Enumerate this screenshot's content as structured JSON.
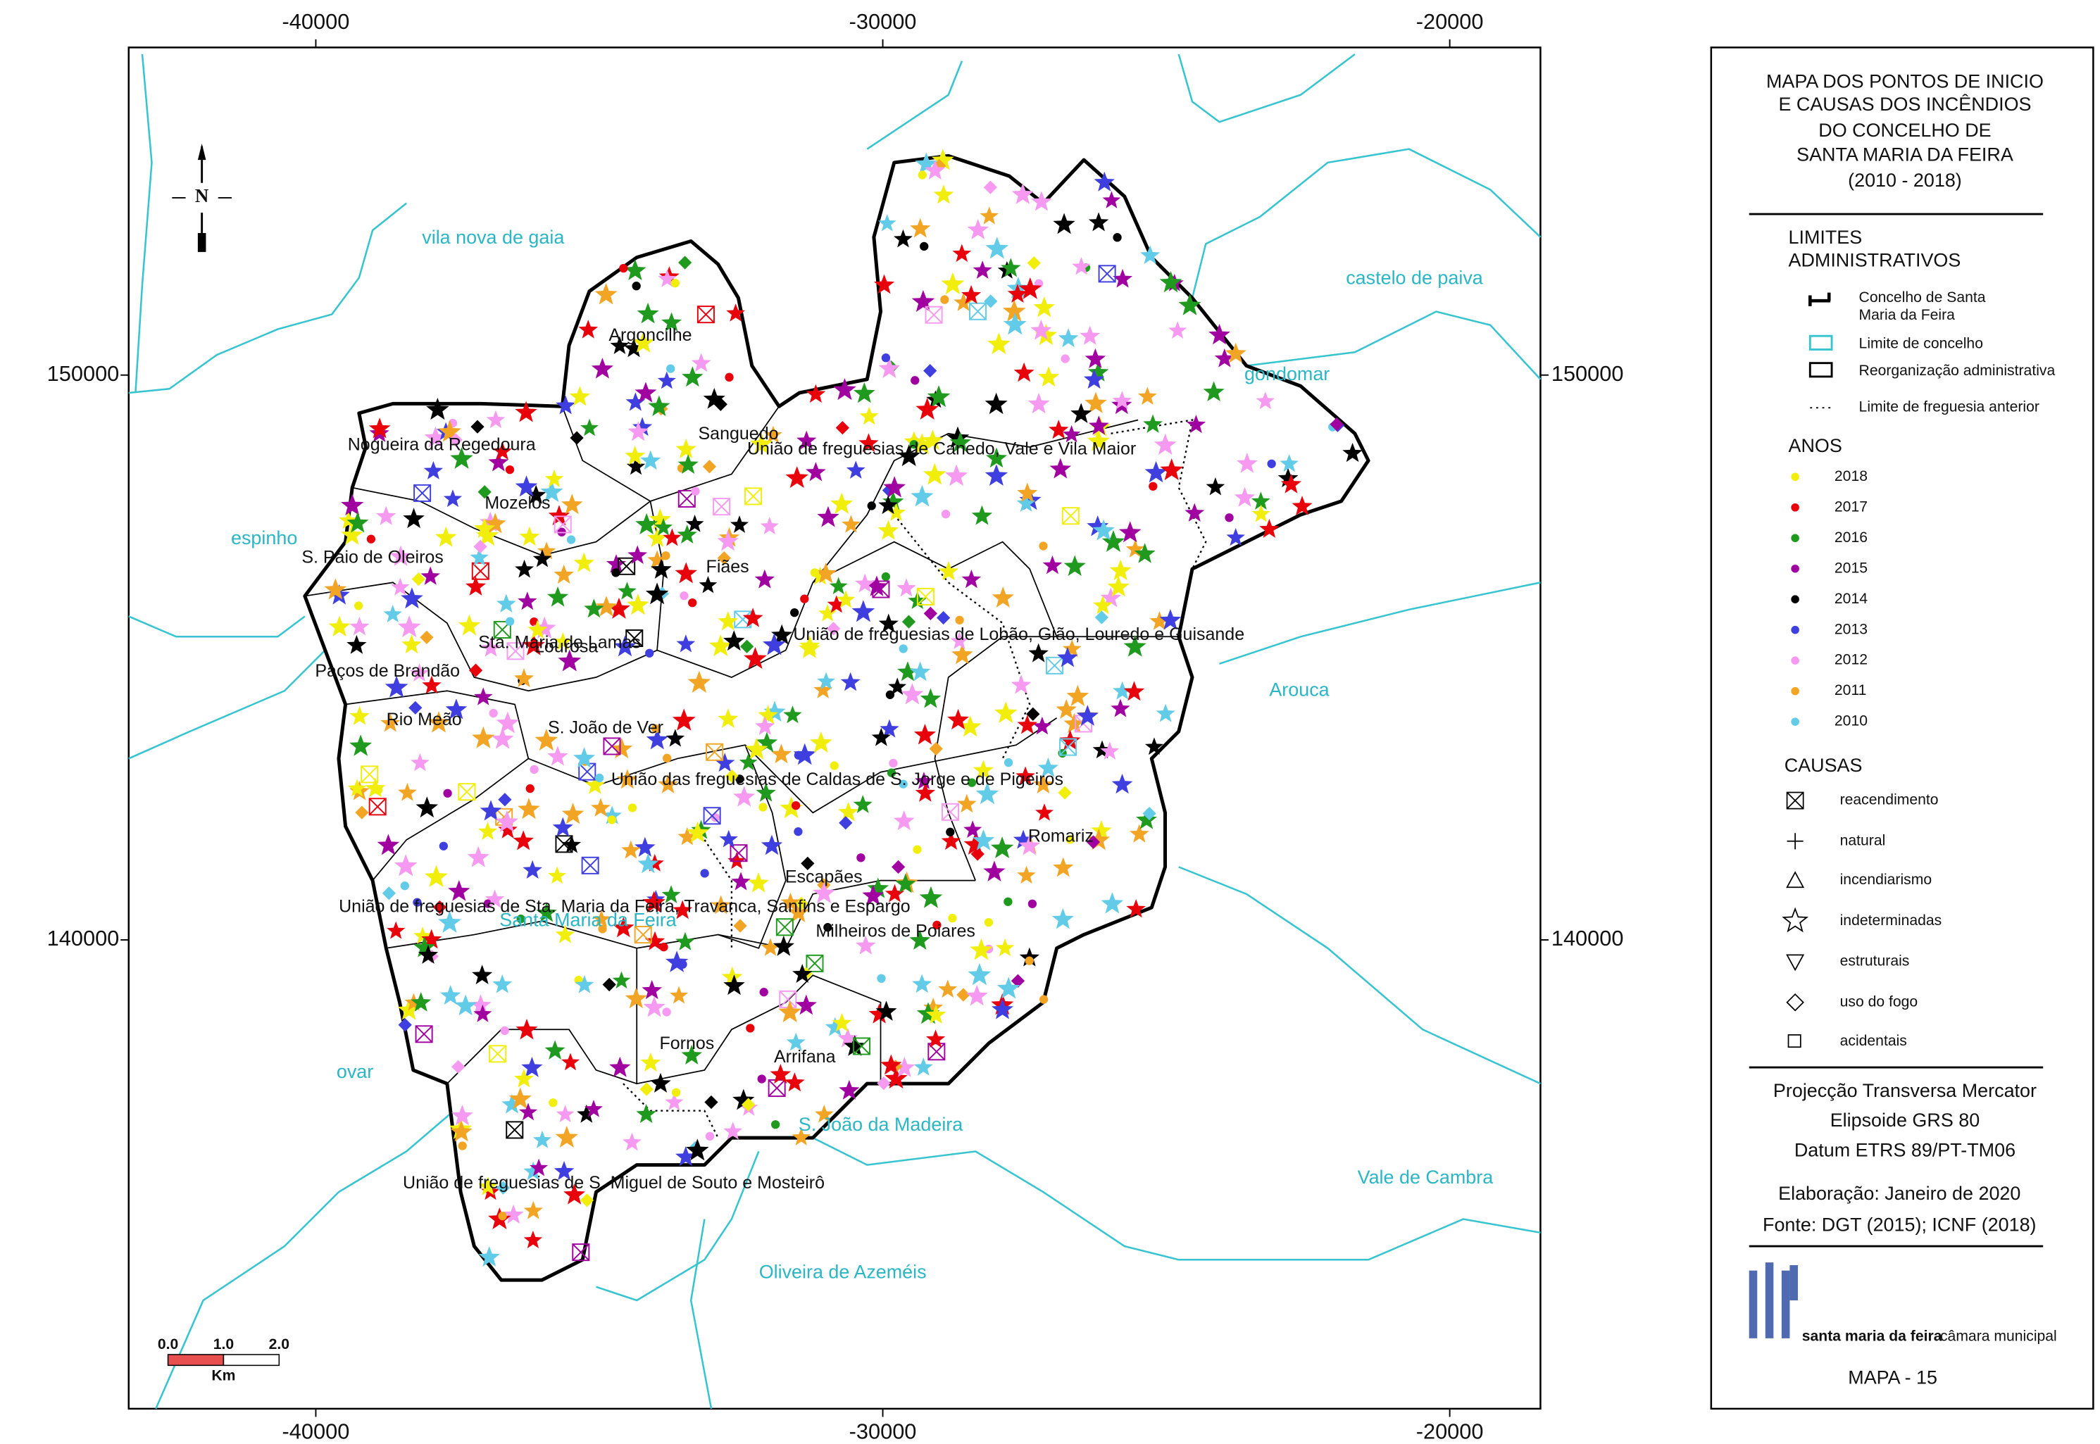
{
  "map": {
    "xlim": [
      -43300,
      -18400
    ],
    "ylim": [
      131700,
      155800
    ],
    "xticks": [
      -40000,
      -30000,
      -20000
    ],
    "yticks": [
      150000,
      140000
    ]
  },
  "north": "N",
  "scale_bar": {
    "labels": [
      "0.0",
      "1.0",
      "2.0"
    ],
    "unit": "Km"
  },
  "municipalities": [
    "vila nova de gaia",
    "castelo de paiva",
    "gondomar",
    "espinho",
    "Arouca",
    "ovar",
    "Vale de Cambra",
    "Oliveira de Azeméis",
    "S. João da Madeira",
    "Santa Maria da Feira"
  ],
  "parishes": [
    "Argoncilhe",
    "Sanguedo",
    "União de freguesias de Canedo, Vale e Vila Maior",
    "Nogueira da Regedoura",
    "Mozelos",
    "S. Paio de Oleiros",
    "Fiães",
    "União de freguesias de Lobão, Gião, Louredo e Guisande",
    "Sta. Maria de Lamas",
    "Lourosa",
    "Paços de Brandão",
    "Rio Meão",
    "S. João de Ver",
    "União das freguesias de Caldas de S. Jorge e de Pigeiros",
    "Romariz",
    "Escapães",
    "União de freguesias de Sta. Maria da Feira, Travanca, Sanfins e Espargo",
    "Milheiros de Poiares",
    "Fornos",
    "Arrifana",
    "União de freguesias de S. Miguel de Souto e Mosteirô"
  ],
  "legend": {
    "title": [
      "MAPA DOS PONTOS DE INICIO",
      "E CAUSAS DOS INCÊNDIOS",
      "DO CONCELHO DE",
      "SANTA MARIA DA FEIRA",
      "(2010 - 2018)"
    ],
    "admin_title": [
      "LIMITES",
      "ADMINISTRATIVOS"
    ],
    "admin_items": [
      "Concelho de Santa",
      "Maria da Feira",
      "Limite de concelho",
      "Reorganização administrativa",
      "Limite de freguesia anterior"
    ],
    "years_title": "ANOS",
    "years": [
      {
        "label": "2018",
        "color": "#f2ee0c"
      },
      {
        "label": "2017",
        "color": "#e8000b"
      },
      {
        "label": "2016",
        "color": "#1f9a1f"
      },
      {
        "label": "2015",
        "color": "#a000a0"
      },
      {
        "label": "2014",
        "color": "#000000"
      },
      {
        "label": "2013",
        "color": "#3f3fe0"
      },
      {
        "label": "2012",
        "color": "#f59af0"
      },
      {
        "label": "2011",
        "color": "#f2a524"
      },
      {
        "label": "2010",
        "color": "#62cbe8"
      }
    ],
    "causes_title": "CAUSAS",
    "causes": [
      "reacendimento",
      "natural",
      "incendiarismo",
      "indeterminadas",
      "estruturais",
      "uso do fogo",
      "acidentais"
    ],
    "projection": [
      "Projecção Transversa Mercator",
      "Elipsoide GRS 80",
      "Datum ETRS 89/PT-TM06"
    ],
    "elaboration": "Elaboração: Janeiro de 2020",
    "source": "Fonte: DGT (2015); ICNF (2018)",
    "logo": "santa maria da feira",
    "logo_sub": "câmara municipal",
    "map_number": "MAPA - 15"
  }
}
